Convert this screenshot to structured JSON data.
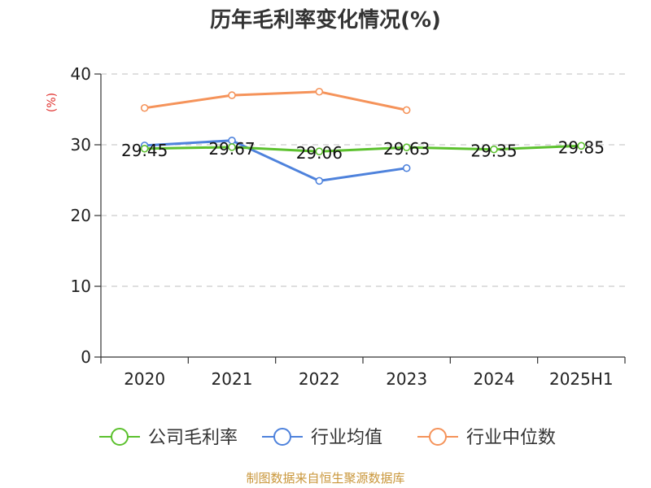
{
  "chart_data": {
    "type": "line",
    "title": "历年毛利率变化情况(%)",
    "ylabel": "(%)",
    "xlabel": "",
    "ylim": [
      0,
      40
    ],
    "yticks": [
      0,
      10,
      20,
      30,
      40
    ],
    "grid": true,
    "legend_position": "bottom",
    "categories": [
      "2020",
      "2021",
      "2022",
      "2023",
      "2024",
      "2025H1"
    ],
    "series": [
      {
        "name": "公司毛利率",
        "color": "#5cc12e",
        "values": [
          29.45,
          29.67,
          29.06,
          29.63,
          29.35,
          29.85
        ],
        "labels": [
          "29.45",
          "29.67",
          "29.06",
          "29.63",
          "29.35",
          "29.85"
        ]
      },
      {
        "name": "行业均值",
        "color": "#4e82dc",
        "values": [
          29.9,
          30.6,
          24.9,
          26.7,
          null,
          null
        ]
      },
      {
        "name": "行业中位数",
        "color": "#f5935a",
        "values": [
          35.2,
          37.0,
          37.5,
          34.9,
          null,
          null
        ]
      }
    ],
    "source": "制图数据来自恒生聚源数据库"
  }
}
